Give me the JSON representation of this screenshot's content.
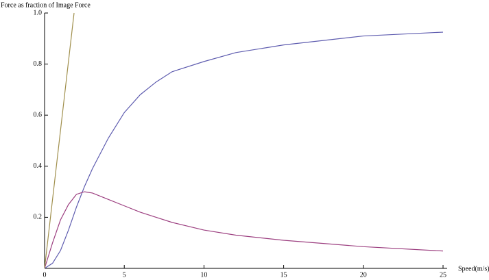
{
  "chart_data": {
    "type": "line",
    "y_label": "Force as fraction of Image Force",
    "x_label": "Speed(m/s)",
    "xlim": [
      0,
      25
    ],
    "ylim": [
      0,
      1
    ],
    "xticks": [
      0,
      5,
      10,
      15,
      20,
      25
    ],
    "yticks": [
      0.2,
      0.4,
      0.6,
      0.8,
      {
        "value": 1,
        "label": "1.0"
      }
    ],
    "series": [
      {
        "color": "#5e5caf",
        "x": [
          0,
          0.5,
          1,
          1.5,
          2,
          2.5,
          3,
          4,
          5,
          6,
          7,
          8,
          10,
          12,
          15,
          20,
          25
        ],
        "values": [
          0,
          0.02,
          0.07,
          0.15,
          0.24,
          0.32,
          0.39,
          0.51,
          0.61,
          0.68,
          0.73,
          0.77,
          0.81,
          0.845,
          0.875,
          0.91,
          0.925
        ]
      },
      {
        "color": "#9c3f80",
        "x": [
          0,
          0.5,
          1,
          1.5,
          2,
          2.5,
          3,
          4,
          5,
          6,
          7,
          8,
          10,
          12,
          15,
          20,
          25
        ],
        "values": [
          0,
          0.1,
          0.19,
          0.25,
          0.29,
          0.3,
          0.295,
          0.27,
          0.245,
          0.22,
          0.2,
          0.18,
          0.15,
          0.13,
          0.11,
          0.085,
          0.068
        ]
      },
      {
        "color": "#a08f4c",
        "x": [
          0,
          1.85
        ],
        "values": [
          0,
          1
        ]
      }
    ]
  }
}
